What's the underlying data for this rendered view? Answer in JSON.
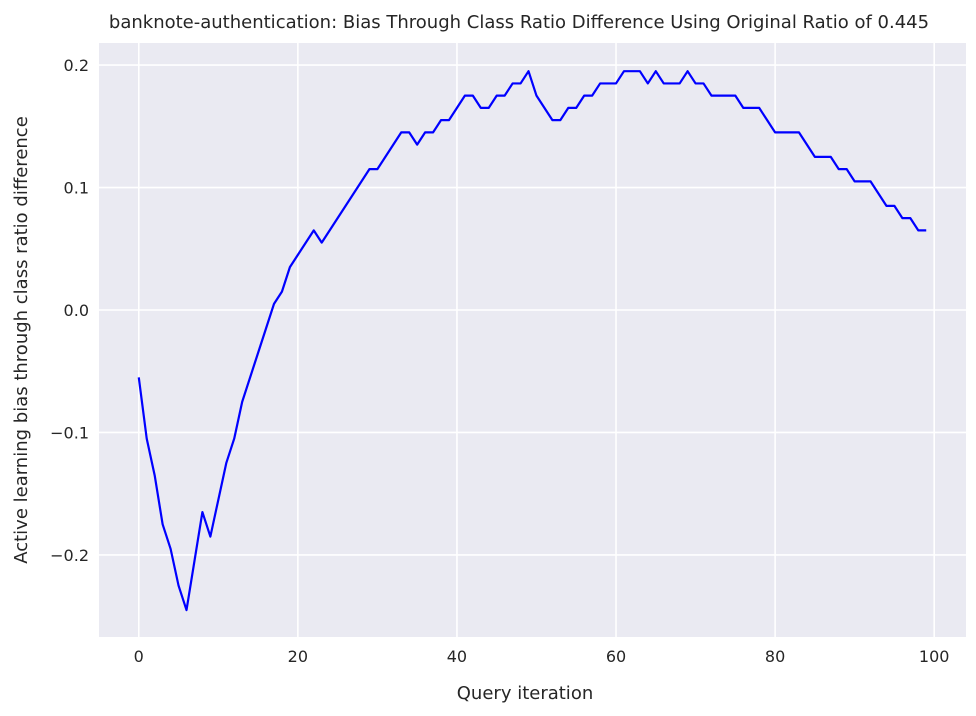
{
  "chart_data": {
    "type": "line",
    "title": "banknote-authentication: Bias Through Class Ratio Difference Using Original Ratio of 0.445",
    "xlabel": "Query iteration",
    "ylabel": "Active learning bias through class ratio difference",
    "xlim": [
      -5,
      104
    ],
    "ylim": [
      -0.267,
      0.218
    ],
    "xticks": [
      0,
      20,
      40,
      60,
      80,
      100
    ],
    "yticks": [
      -0.2,
      -0.1,
      0.0,
      0.1,
      0.2
    ],
    "xtick_labels": [
      "0",
      "20",
      "40",
      "60",
      "80",
      "100"
    ],
    "ytick_labels": [
      "−0.2",
      "−0.1",
      "0.0",
      "0.1",
      "0.2"
    ],
    "grid": true,
    "colors": {
      "background": "#eaeaf2",
      "grid": "#ffffff",
      "line": "#0000ff"
    },
    "series": [
      {
        "x": [
          0,
          1,
          2,
          3,
          4,
          5,
          6,
          7,
          8,
          9,
          10,
          11,
          12,
          13,
          14,
          15,
          16,
          17,
          18,
          19,
          20,
          21,
          22,
          23,
          24,
          25,
          26,
          27,
          28,
          29,
          30,
          31,
          32,
          33,
          34,
          35,
          36,
          37,
          38,
          39,
          40,
          41,
          42,
          43,
          44,
          45,
          46,
          47,
          48,
          49,
          50,
          51,
          52,
          53,
          54,
          55,
          56,
          57,
          58,
          59,
          60,
          61,
          62,
          63,
          64,
          65,
          66,
          67,
          68,
          69,
          70,
          71,
          72,
          73,
          74,
          75,
          76,
          77,
          78,
          79,
          80,
          81,
          82,
          83,
          84,
          85,
          86,
          87,
          88,
          89,
          90,
          91,
          92,
          93,
          94,
          95,
          96,
          97,
          98,
          99
        ],
        "values": [
          -0.055,
          -0.105,
          -0.135,
          -0.175,
          -0.195,
          -0.225,
          -0.245,
          -0.205,
          -0.165,
          -0.185,
          -0.155,
          -0.125,
          -0.105,
          -0.075,
          -0.055,
          -0.035,
          -0.015,
          0.005,
          0.015,
          0.035,
          0.045,
          0.055,
          0.065,
          0.055,
          0.065,
          0.075,
          0.085,
          0.095,
          0.105,
          0.115,
          0.115,
          0.125,
          0.135,
          0.145,
          0.145,
          0.135,
          0.145,
          0.145,
          0.155,
          0.155,
          0.165,
          0.175,
          0.175,
          0.165,
          0.165,
          0.175,
          0.175,
          0.185,
          0.185,
          0.195,
          0.175,
          0.165,
          0.155,
          0.155,
          0.165,
          0.165,
          0.175,
          0.175,
          0.185,
          0.185,
          0.185,
          0.195,
          0.195,
          0.195,
          0.185,
          0.195,
          0.185,
          0.185,
          0.185,
          0.195,
          0.185,
          0.185,
          0.175,
          0.175,
          0.175,
          0.175,
          0.165,
          0.165,
          0.165,
          0.155,
          0.145,
          0.145,
          0.145,
          0.145,
          0.135,
          0.125,
          0.125,
          0.125,
          0.115,
          0.115,
          0.105,
          0.105,
          0.105,
          0.095,
          0.085,
          0.085,
          0.075,
          0.075,
          0.065,
          0.065
        ]
      }
    ]
  }
}
